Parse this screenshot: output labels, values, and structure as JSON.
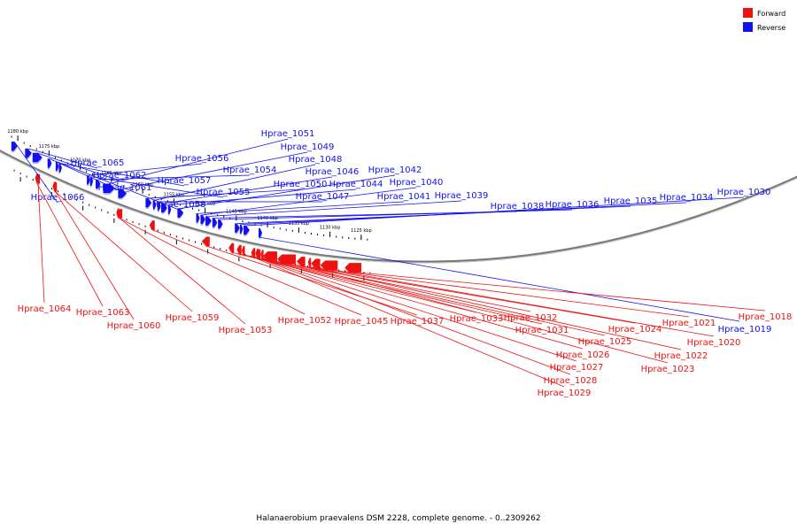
{
  "legend": [
    {
      "label": "Forward",
      "color": "#ee1111"
    },
    {
      "label": "Reverse",
      "color": "#1111ee"
    }
  ],
  "caption": "Halanaerobium praevalens DSM 2228, complete genome. - 0..2309262",
  "colors": {
    "forward": "#ee1111",
    "reverse": "#1111ee",
    "backbone": "#777777"
  },
  "ticks": [
    {
      "kb": 1180,
      "label": "1180 kbp"
    },
    {
      "kb": 1175,
      "label": "1175 kbp"
    },
    {
      "kb": 1170,
      "label": "1170 kbp"
    },
    {
      "kb": 1165,
      "label": "1165 kbp"
    },
    {
      "kb": 1160,
      "label": "1160 kbp"
    },
    {
      "kb": 1155,
      "label": "1155 kbp"
    },
    {
      "kb": 1150,
      "label": "1150 kbp"
    },
    {
      "kb": 1145,
      "label": "1145 kbp"
    },
    {
      "kb": 1140,
      "label": "1140 kbp"
    },
    {
      "kb": 1135,
      "label": "1135 kbp"
    },
    {
      "kb": 1130,
      "label": "1130 kbp"
    },
    {
      "kb": 1125,
      "label": "1125 kbp"
    }
  ],
  "genes_reverse": [
    {
      "label": "Hprae_1066",
      "start": 1181.0,
      "end": 1180.1
    },
    {
      "label": "Hprae_1065",
      "start": 1178.8,
      "end": 1177.8
    },
    {
      "label": "Hprae_1062",
      "start": 1177.6,
      "end": 1176.1
    },
    {
      "label": "Hprae_1061",
      "start": 1175.2,
      "end": 1174.6
    },
    {
      "label": "Hprae_1058",
      "start": 1173.9,
      "end": 1173.7
    },
    {
      "label": "Hprae_1057",
      "start": 1173.4,
      "end": 1173.1
    },
    {
      "label": "Hprae_1056",
      "start": 1168.9,
      "end": 1168.6
    },
    {
      "label": "Hprae_1055",
      "start": 1168.4,
      "end": 1168.1
    },
    {
      "label": "Hprae_1054",
      "start": 1167.5,
      "end": 1166.8
    },
    {
      "label": "Hprae_1051",
      "start": 1166.3,
      "end": 1164.5
    },
    {
      "label": "Hprae_1049",
      "start": 1163.9,
      "end": 1162.6
    },
    {
      "label": "Hprae_1050",
      "start": 1159.5,
      "end": 1158.6
    },
    {
      "label": "Hprae_1048",
      "start": 1158.3,
      "end": 1157.9
    },
    {
      "label": "Hprae_1047",
      "start": 1157.6,
      "end": 1157.2
    },
    {
      "label": "Hprae_1046",
      "start": 1157.0,
      "end": 1156.1
    },
    {
      "label": "Hprae_1044",
      "start": 1155.9,
      "end": 1155.6
    },
    {
      "label": "Hprae_1042",
      "start": 1154.4,
      "end": 1153.5
    },
    {
      "label": "Hprae_1041",
      "start": 1151.4,
      "end": 1150.9
    },
    {
      "label": "Hprae_1040",
      "start": 1150.7,
      "end": 1150.0
    },
    {
      "label": "Hprae_1039",
      "start": 1149.9,
      "end": 1149.0
    },
    {
      "label": "Hprae_1038",
      "start": 1148.8,
      "end": 1148.1
    },
    {
      "label": "Hprae_1036",
      "start": 1147.9,
      "end": 1147.2
    },
    {
      "label": "Hprae_1035",
      "start": 1145.2,
      "end": 1144.5
    },
    {
      "label": "Hprae_1034",
      "start": 1144.4,
      "end": 1144.0
    },
    {
      "label": "Hprae_1030",
      "start": 1143.8,
      "end": 1142.9
    },
    {
      "label": "Hprae_1019",
      "start": 1141.4,
      "end": 1140.9
    }
  ],
  "genes_forward": [
    {
      "label": "Hprae_1064",
      "start": 1176.5,
      "end": 1177.0
    },
    {
      "label": "Hprae_1063",
      "start": 1176.9,
      "end": 1177.2
    },
    {
      "label": "Hprae_1060",
      "start": 1173.8,
      "end": 1174.2
    },
    {
      "label": "Hprae_1059",
      "start": 1174.1,
      "end": 1174.4
    },
    {
      "label": "Hprae_1053",
      "start": 1163.3,
      "end": 1164.1
    },
    {
      "label": "Hprae_1052",
      "start": 1163.8,
      "end": 1164.2
    },
    {
      "label": "Hprae_1045",
      "start": 1158.1,
      "end": 1158.9
    },
    {
      "label": "Hprae_1037",
      "start": 1149.3,
      "end": 1150.5
    },
    {
      "label": "Hprae_1033",
      "start": 1145.4,
      "end": 1146.2
    },
    {
      "label": "Hprae_1032",
      "start": 1144.2,
      "end": 1144.9
    },
    {
      "label": "Hprae_1031",
      "start": 1143.7,
      "end": 1144.1
    },
    {
      "label": "Hprae_1029",
      "start": 1142.0,
      "end": 1142.6
    },
    {
      "label": "Hprae_1028",
      "start": 1141.7,
      "end": 1141.9
    },
    {
      "label": "Hprae_1027",
      "start": 1141.2,
      "end": 1141.6
    },
    {
      "label": "Hprae_1026",
      "start": 1140.8,
      "end": 1141.1
    },
    {
      "label": "Hprae_1025",
      "start": 1138.5,
      "end": 1140.7
    },
    {
      "label": "Hprae_1024",
      "start": 1135.5,
      "end": 1138.4
    },
    {
      "label": "Hprae_1023",
      "start": 1134.0,
      "end": 1135.3
    },
    {
      "label": "Hprae_1022",
      "start": 1133.2,
      "end": 1133.5
    },
    {
      "label": "Hprae_1021",
      "start": 1131.6,
      "end": 1133.0
    },
    {
      "label": "Hprae_1020",
      "start": 1128.8,
      "end": 1131.5
    },
    {
      "label": "Hprae_1018",
      "start": 1125.0,
      "end": 1127.6
    }
  ],
  "reverse_label_layout_order": [
    "Hprae_1066",
    "Hprae_1065",
    "Hprae_1062",
    "Hprae_1061",
    "Hprae_1058",
    "Hprae_1057",
    "Hprae_1056",
    "Hprae_1055",
    "Hprae_1054",
    "Hprae_1051",
    "Hprae_1050",
    "Hprae_1049",
    "Hprae_1048",
    "Hprae_1047",
    "Hprae_1046",
    "Hprae_1044",
    "Hprae_1042",
    "Hprae_1041",
    "Hprae_1040",
    "Hprae_1039",
    "Hprae_1038",
    "Hprae_1036",
    "Hprae_1035",
    "Hprae_1034",
    "Hprae_1030",
    "Hprae_1019"
  ]
}
